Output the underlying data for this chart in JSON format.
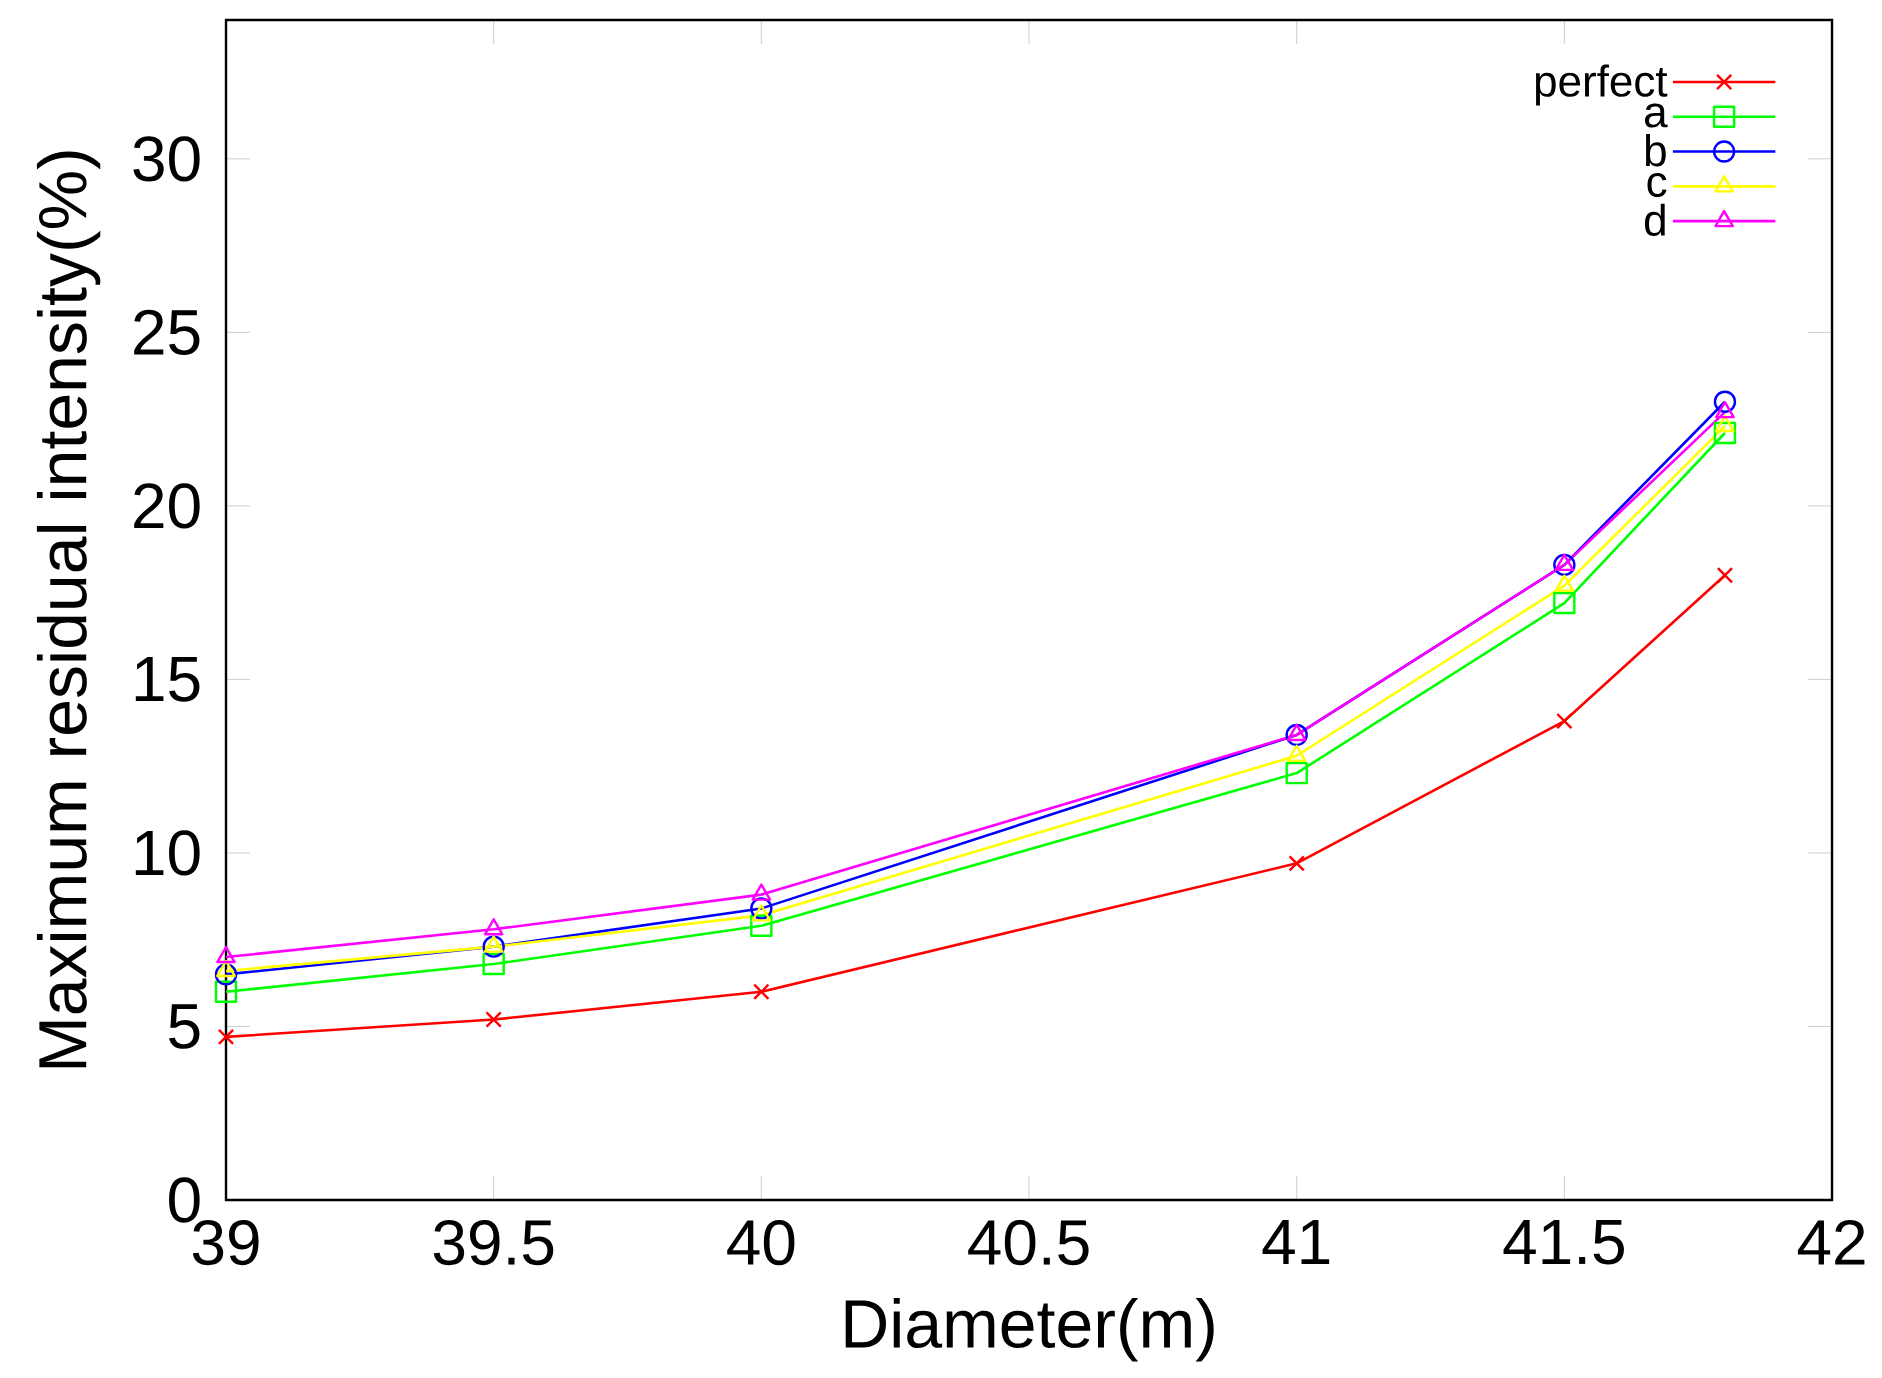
{
  "chart_data": {
    "type": "line",
    "xlabel": "Diameter(m)",
    "ylabel": "Maximum residual intensity(%)",
    "x": [
      39,
      39.5,
      40,
      41,
      41.5,
      41.8
    ],
    "series": [
      {
        "name": "perfect",
        "color": "#ff0000",
        "marker": "cross",
        "values": [
          4.7,
          5.2,
          6.0,
          9.7,
          13.8,
          18.0
        ]
      },
      {
        "name": "a",
        "color": "#00ff00",
        "marker": "square",
        "values": [
          6.0,
          6.8,
          7.9,
          12.3,
          17.2,
          22.1
        ]
      },
      {
        "name": "b",
        "color": "#0000ff",
        "marker": "circle",
        "values": [
          6.5,
          7.3,
          8.4,
          13.4,
          18.3,
          23.0
        ]
      },
      {
        "name": "c",
        "color": "#ffff00",
        "marker": "triangle",
        "values": [
          6.6,
          7.3,
          8.2,
          12.8,
          17.7,
          22.3
        ]
      },
      {
        "name": "d",
        "color": "#ff00ff",
        "marker": "triangle-down",
        "values": [
          7.0,
          7.8,
          8.8,
          13.4,
          18.3,
          22.7
        ]
      }
    ],
    "xlim": [
      39,
      42
    ],
    "ylim": [
      0,
      34
    ],
    "xticks": [
      39,
      39.5,
      40,
      40.5,
      41,
      41.5,
      42
    ],
    "yticks": [
      0,
      5,
      10,
      15,
      20,
      25,
      30
    ],
    "grid": false,
    "legend": "top right",
    "line_style": "solid"
  }
}
